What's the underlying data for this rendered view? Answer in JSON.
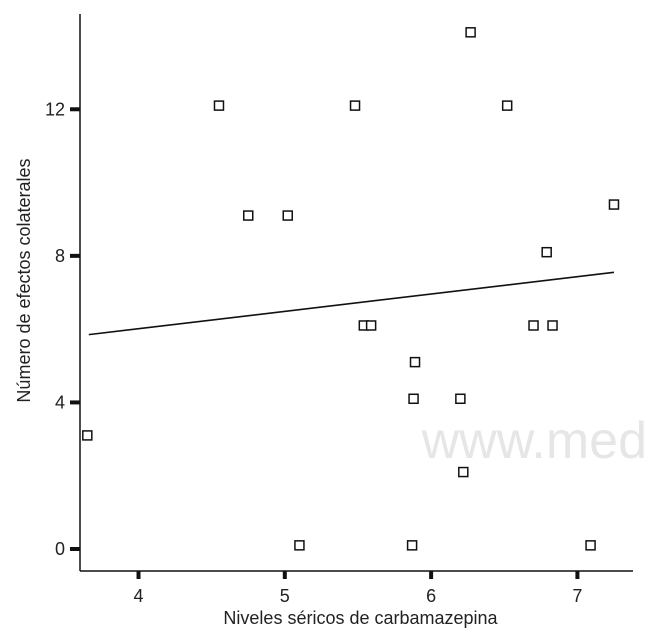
{
  "chart_data": {
    "type": "scatter",
    "title": "",
    "xlabel": "Niveles séricos de carbamazepina",
    "ylabel": "Número de efectos colaterales",
    "xlim": [
      3.6,
      7.38
    ],
    "ylim": [
      -0.6,
      14.6
    ],
    "xticks": [
      4,
      5,
      6,
      7
    ],
    "yticks": [
      0,
      4,
      8,
      12
    ],
    "tick_labels": {
      "x": [
        "4",
        "5",
        "6",
        "7"
      ],
      "y": [
        "0",
        "4",
        "8",
        "12"
      ]
    },
    "grid": false,
    "legend": "none",
    "marker": "open-square",
    "points": [
      {
        "x": 3.65,
        "y": 3.1
      },
      {
        "x": 4.55,
        "y": 12.1
      },
      {
        "x": 4.75,
        "y": 9.1
      },
      {
        "x": 5.02,
        "y": 9.1
      },
      {
        "x": 5.1,
        "y": 0.1
      },
      {
        "x": 5.48,
        "y": 12.1
      },
      {
        "x": 5.54,
        "y": 6.1
      },
      {
        "x": 5.59,
        "y": 6.1
      },
      {
        "x": 5.87,
        "y": 0.1
      },
      {
        "x": 5.88,
        "y": 4.1
      },
      {
        "x": 5.89,
        "y": 5.1
      },
      {
        "x": 6.2,
        "y": 4.1
      },
      {
        "x": 6.22,
        "y": 2.1
      },
      {
        "x": 6.27,
        "y": 14.1
      },
      {
        "x": 6.52,
        "y": 12.1
      },
      {
        "x": 6.7,
        "y": 6.1
      },
      {
        "x": 6.79,
        "y": 8.1
      },
      {
        "x": 6.83,
        "y": 6.1
      },
      {
        "x": 7.09,
        "y": 0.1
      },
      {
        "x": 7.25,
        "y": 9.4
      }
    ],
    "fit_line": {
      "x": [
        3.66,
        7.25
      ],
      "y": [
        5.85,
        7.55
      ]
    },
    "watermark": "www.med"
  },
  "colors": {
    "ink": "#111111",
    "text": "#222222",
    "watermark": "#e6e6e6"
  }
}
